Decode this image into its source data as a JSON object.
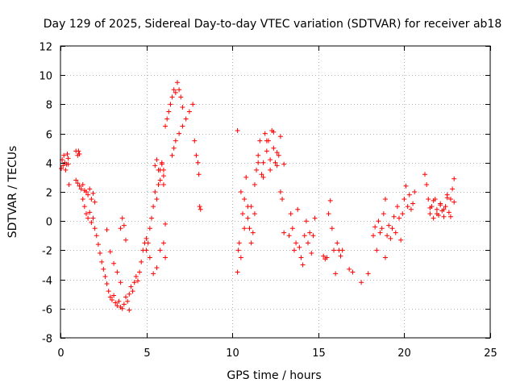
{
  "chart_data": {
    "type": "scatter",
    "title": "Day 129 of 2025, Sidereal Day-to-day VTEC variation (SDTVAR) for receiver ab18",
    "xlabel": "GPS time / hours",
    "ylabel": "SDTVAR / TECUs",
    "xlim": [
      0,
      25
    ],
    "ylim": [
      -8,
      12
    ],
    "xticks": [
      0,
      5,
      10,
      15,
      20,
      25
    ],
    "yticks": [
      -8,
      -6,
      -4,
      -2,
      0,
      2,
      4,
      6,
      8,
      10,
      12
    ],
    "grid": true,
    "marker": "+",
    "color": "#ff0000",
    "series": [
      {
        "name": "SDTVAR",
        "x": [
          0.05,
          0.1,
          0.15,
          0.2,
          0.25,
          0.3,
          0.35,
          0.4,
          0.45,
          0.5,
          0.9,
          1.0,
          1.05,
          1.1,
          0.45,
          0.9,
          1.0,
          1.1,
          1.2,
          1.3,
          1.4,
          1.5,
          1.6,
          1.7,
          1.8,
          1.9,
          2.0,
          1.3,
          1.4,
          1.5,
          1.6,
          1.7,
          1.8,
          1.9,
          2.0,
          2.1,
          2.2,
          2.3,
          2.4,
          2.5,
          2.6,
          2.7,
          2.8,
          2.9,
          3.0,
          3.1,
          3.2,
          3.3,
          3.4,
          3.5,
          3.6,
          3.7,
          3.8,
          3.9,
          4.0,
          2.7,
          2.9,
          3.1,
          3.3,
          3.5,
          3.5,
          3.6,
          3.7,
          3.8,
          4.0,
          4.1,
          4.2,
          4.3,
          4.4,
          4.5,
          4.6,
          4.7,
          4.8,
          4.9,
          5.0,
          5.2,
          5.4,
          5.6,
          5.8,
          6.0,
          6.1,
          5.0,
          5.1,
          5.2,
          5.3,
          5.4,
          5.5,
          5.6,
          5.7,
          5.8,
          5.9,
          6.0,
          5.5,
          5.6,
          5.7,
          5.8,
          5.9,
          6.0,
          6.1,
          6.2,
          6.3,
          6.4,
          6.5,
          6.6,
          6.7,
          6.8,
          6.9,
          7.0,
          7.1,
          6.5,
          6.6,
          6.7,
          6.9,
          7.1,
          7.3,
          7.5,
          7.7,
          7.8,
          7.9,
          8.0,
          8.05,
          8.1,
          8.15,
          6.1,
          6.0,
          10.3,
          10.35,
          10.4,
          10.5,
          10.6,
          10.7,
          10.8,
          10.9,
          11.0,
          11.1,
          11.2,
          11.3,
          11.4,
          11.5,
          11.5,
          11.6,
          11.7,
          11.8,
          11.9,
          12.0,
          12.1,
          12.2,
          12.3,
          12.4,
          12.5,
          12.6,
          12.7,
          12.8,
          12.9,
          13.0,
          11.8,
          12.0,
          12.2,
          12.4,
          12.6,
          12.8,
          13.0,
          10.3,
          10.5,
          10.7,
          10.9,
          11.1,
          11.3,
          13.3,
          13.4,
          13.5,
          13.6,
          13.7,
          13.8,
          13.9,
          14.0,
          14.1,
          14.2,
          14.3,
          14.4,
          14.5,
          14.6,
          14.7,
          14.8,
          15.3,
          15.4,
          15.5,
          15.6,
          15.7,
          15.8,
          15.9,
          16.0,
          16.1,
          16.2,
          16.3,
          16.4,
          17.0,
          17.5,
          17.9,
          18.2,
          18.3,
          18.4,
          18.5,
          18.6,
          18.7,
          18.8,
          18.9,
          19.0,
          19.1,
          19.2,
          19.3,
          19.4,
          19.5,
          19.6,
          19.7,
          19.8,
          19.9,
          20.0,
          20.1,
          20.2,
          20.3,
          20.4,
          20.5,
          20.6,
          21.2,
          21.3,
          21.4,
          21.5,
          21.6,
          21.7,
          21.8,
          21.9,
          22.0,
          22.1,
          22.2,
          22.3,
          22.4,
          22.5,
          22.6,
          22.7,
          22.8,
          22.9,
          21.5,
          21.7,
          21.9,
          22.1,
          22.3,
          22.5,
          22.7,
          22.9,
          18.9,
          16.8
        ],
        "y": [
          3.6,
          4.2,
          3.8,
          4.5,
          4.0,
          3.5,
          3.9,
          4.6,
          4.3,
          2.5,
          4.8,
          4.5,
          4.8,
          4.6,
          3.9,
          2.8,
          2.6,
          2.4,
          2.2,
          2.5,
          2.1,
          2.0,
          1.8,
          2.2,
          1.5,
          1.9,
          1.3,
          1.5,
          1.0,
          0.5,
          0.2,
          0.6,
          -0.1,
          0.2,
          -0.5,
          -1.0,
          -1.6,
          -2.2,
          -2.8,
          -3.3,
          -3.8,
          -4.3,
          -4.8,
          -5.2,
          -5.4,
          -5.1,
          -5.6,
          -5.8,
          -5.5,
          -5.9,
          -6.0,
          -5.7,
          -5.2,
          -5.5,
          -6.1,
          -0.6,
          -2.1,
          -2.9,
          -3.5,
          -4.2,
          -0.5,
          0.2,
          -0.3,
          -1.3,
          -5.0,
          -4.5,
          -4.8,
          -4.2,
          -3.8,
          -4.1,
          -3.5,
          -2.8,
          -2.0,
          -1.5,
          -1.2,
          -2.5,
          -3.6,
          -3.2,
          -2.0,
          -1.5,
          -0.2,
          -2.0,
          -1.5,
          -0.5,
          0.2,
          1.0,
          2.0,
          1.5,
          2.5,
          3.5,
          4.0,
          3.1,
          3.8,
          4.2,
          3.5,
          2.8,
          3.9,
          3.5,
          6.5,
          7.0,
          7.5,
          8.0,
          8.5,
          9.0,
          8.8,
          9.5,
          9.0,
          8.5,
          7.8,
          4.5,
          5.0,
          5.5,
          6.0,
          6.5,
          7.0,
          7.5,
          8.0,
          5.5,
          4.5,
          4.0,
          3.2,
          1.0,
          0.8,
          -2.5,
          2.5,
          -3.5,
          -2.0,
          -1.5,
          -2.5,
          0.5,
          1.5,
          3.0,
          0.2,
          -0.5,
          1.0,
          -0.8,
          2.5,
          3.5,
          4.0,
          4.5,
          5.5,
          3.2,
          4.0,
          6.0,
          4.8,
          5.5,
          3.5,
          6.2,
          5.0,
          4.0,
          3.8,
          4.5,
          2.0,
          1.5,
          -0.8,
          3.0,
          5.5,
          4.2,
          6.1,
          4.7,
          5.8,
          3.9,
          6.2,
          2.0,
          -0.5,
          1.0,
          -1.5,
          0.5,
          -1.0,
          0.5,
          -0.5,
          -2.0,
          -1.5,
          0.8,
          -1.8,
          -2.5,
          -3.0,
          -1.0,
          0.0,
          -1.5,
          -0.8,
          -2.2,
          -1.0,
          0.2,
          -2.4,
          -2.6,
          -2.5,
          0.5,
          1.4,
          -0.5,
          -2.0,
          -3.6,
          -1.5,
          -2.0,
          -2.4,
          -2.0,
          -3.5,
          -4.2,
          -3.6,
          -1.0,
          -0.4,
          -2.0,
          0.0,
          -0.8,
          -0.5,
          0.5,
          1.5,
          -1.0,
          -0.3,
          -1.2,
          -0.5,
          0.3,
          -0.8,
          1.0,
          0.2,
          -1.3,
          0.5,
          1.5,
          2.4,
          1.0,
          1.8,
          0.8,
          1.2,
          2.0,
          3.2,
          2.5,
          1.5,
          0.5,
          1.0,
          0.2,
          1.5,
          0.8,
          0.4,
          1.2,
          0.7,
          0.3,
          1.0,
          1.8,
          0.6,
          1.5,
          2.2,
          2.9,
          0.9,
          1.4,
          0.5,
          1.1,
          0.8,
          1.6,
          0.3,
          1.3,
          -2.5,
          -3.3
        ]
      }
    ]
  }
}
